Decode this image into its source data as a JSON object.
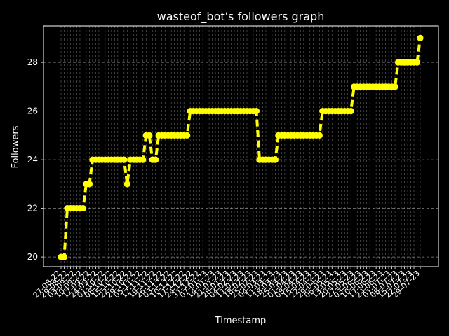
{
  "chart_data": {
    "type": "line",
    "title": "wasteof_bot's followers graph",
    "xlabel": "Timestamp",
    "ylabel": "Followers",
    "ylim": [
      19.6,
      29.5
    ],
    "yticks": [
      20,
      22,
      24,
      26,
      28
    ],
    "grid": true,
    "colors": {
      "background": "#000000",
      "line": "#ffff00",
      "grid": "#bfbfbf",
      "text": "#ffffff"
    },
    "x_tick_labels_visible": [
      "27-08-22",
      "29-08-22",
      "03-09-22",
      "10-09-22",
      "17-09-22",
      "24-09-22",
      "01-10-22",
      "08-10-22",
      "15-10-22",
      "22-10-22",
      "29-10-22",
      "05-11-22",
      "12-11-22",
      "19-11-22",
      "26-11-22",
      "03-12-22",
      "10-12-22",
      "17-12-22",
      "24-12-22",
      "31-12-22",
      "07-01-23",
      "14-01-23",
      "21-01-23",
      "28-01-23",
      "04-02-23",
      "11-02-23",
      "18-02-23",
      "25-02-23",
      "04-03-23",
      "11-03-23",
      "18-03-23",
      "25-03-23",
      "01-04-23",
      "08-04-23",
      "15-04-23",
      "22-04-23",
      "29-04-23",
      "06-05-23",
      "13-05-23",
      "20-05-23",
      "27-05-23",
      "03-06-23",
      "10-06-23",
      "17-06-23",
      "24-06-23",
      "01-07-23",
      "08-07-23",
      "15-07-23",
      "22-07-23",
      "29-07-23"
    ],
    "series": [
      {
        "values": [
          20,
          20,
          22,
          22,
          22,
          22,
          22,
          22,
          23,
          23,
          24,
          24,
          24,
          24,
          24,
          24,
          24,
          24,
          24,
          24,
          24,
          23,
          24,
          24,
          24,
          24,
          24,
          25,
          25,
          24,
          24,
          25,
          25,
          25,
          25,
          25,
          25,
          25,
          25,
          25,
          25,
          26,
          26,
          26,
          26,
          26,
          26,
          26,
          26,
          26,
          26,
          26,
          26,
          26,
          26,
          26,
          26,
          26,
          26,
          26,
          26,
          26,
          26,
          24,
          24,
          24,
          24,
          24,
          24,
          25,
          25,
          25,
          25,
          25,
          25,
          25,
          25,
          25,
          25,
          25,
          25,
          25,
          25,
          26,
          26,
          26,
          26,
          26,
          26,
          26,
          26,
          26,
          26,
          27,
          27,
          27,
          27,
          27,
          27,
          27,
          27,
          27,
          27,
          27,
          27,
          27,
          27,
          28,
          28,
          28,
          28,
          28,
          28,
          28,
          29
        ]
      }
    ]
  }
}
